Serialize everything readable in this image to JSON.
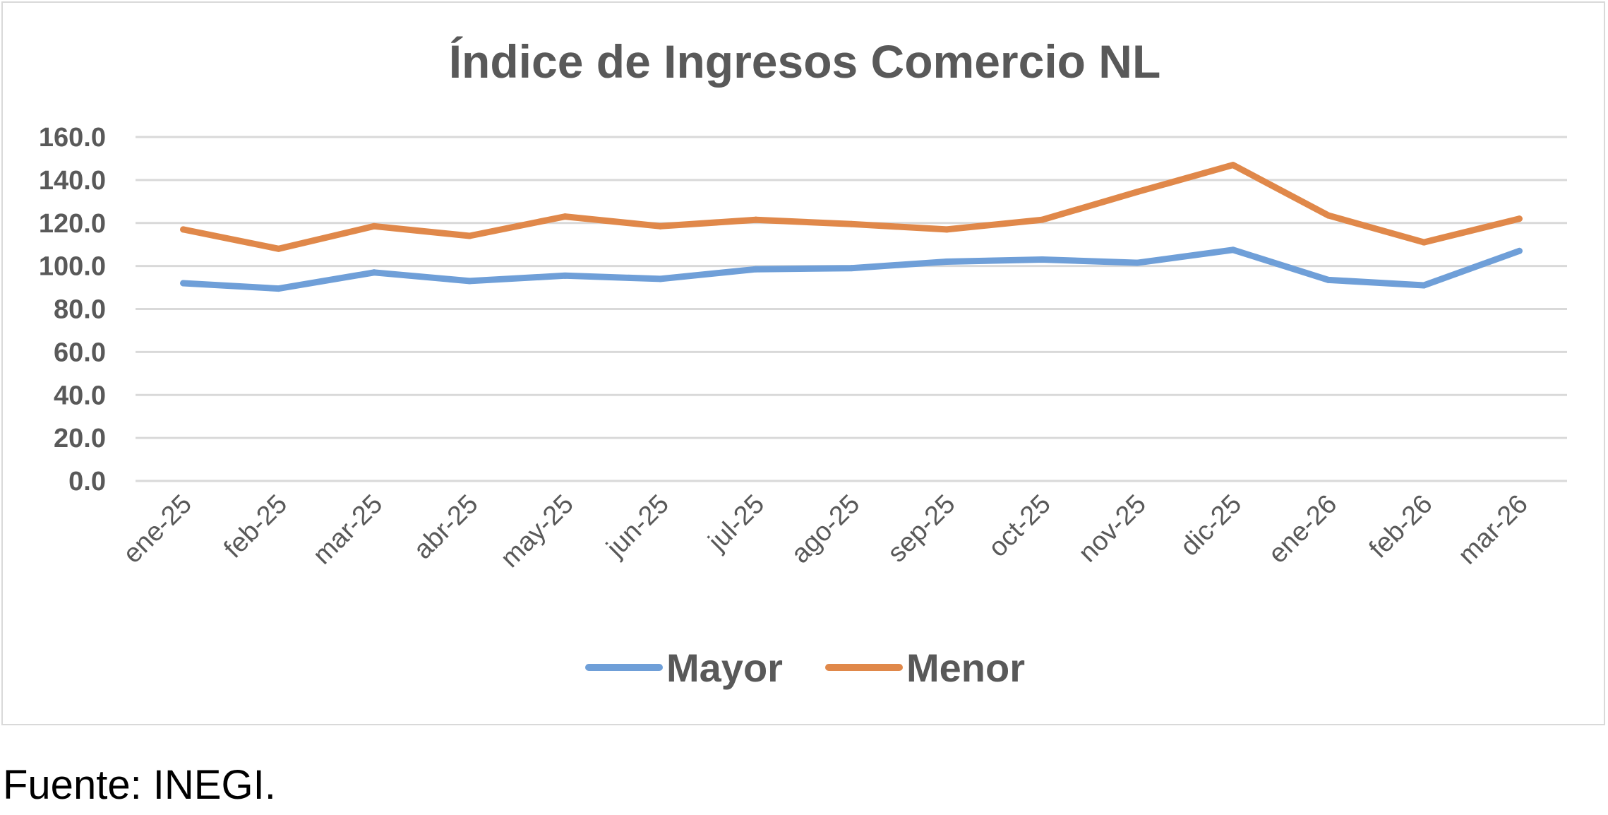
{
  "chart_data": {
    "type": "line",
    "title": "Índice de Ingresos Comercio NL",
    "xlabel": "",
    "ylabel": "",
    "categories": [
      "ene-25",
      "feb-25",
      "mar-25",
      "abr-25",
      "may-25",
      "jun-25",
      "jul-25",
      "ago-25",
      "sep-25",
      "oct-25",
      "nov-25",
      "dic-25",
      "ene-26",
      "feb-26",
      "mar-26"
    ],
    "yticks": [
      "0.0",
      "20.0",
      "40.0",
      "60.0",
      "80.0",
      "100.0",
      "120.0",
      "140.0",
      "160.0"
    ],
    "ylim": [
      0,
      160
    ],
    "grid": true,
    "legend_position": "bottom",
    "series": [
      {
        "name": "Mayor",
        "color": "#6f9fd8",
        "values": [
          92.0,
          89.5,
          97.0,
          93.0,
          95.5,
          94.0,
          98.5,
          99.0,
          102.0,
          103.0,
          101.5,
          107.5,
          93.5,
          91.0,
          107.0
        ]
      },
      {
        "name": "Menor",
        "color": "#e0884a",
        "values": [
          117.0,
          108.0,
          118.5,
          114.0,
          123.0,
          118.5,
          121.5,
          119.5,
          117.0,
          121.5,
          134.5,
          147.0,
          123.5,
          111.0,
          122.0
        ]
      }
    ]
  },
  "source_note": "Fuente: INEGI."
}
